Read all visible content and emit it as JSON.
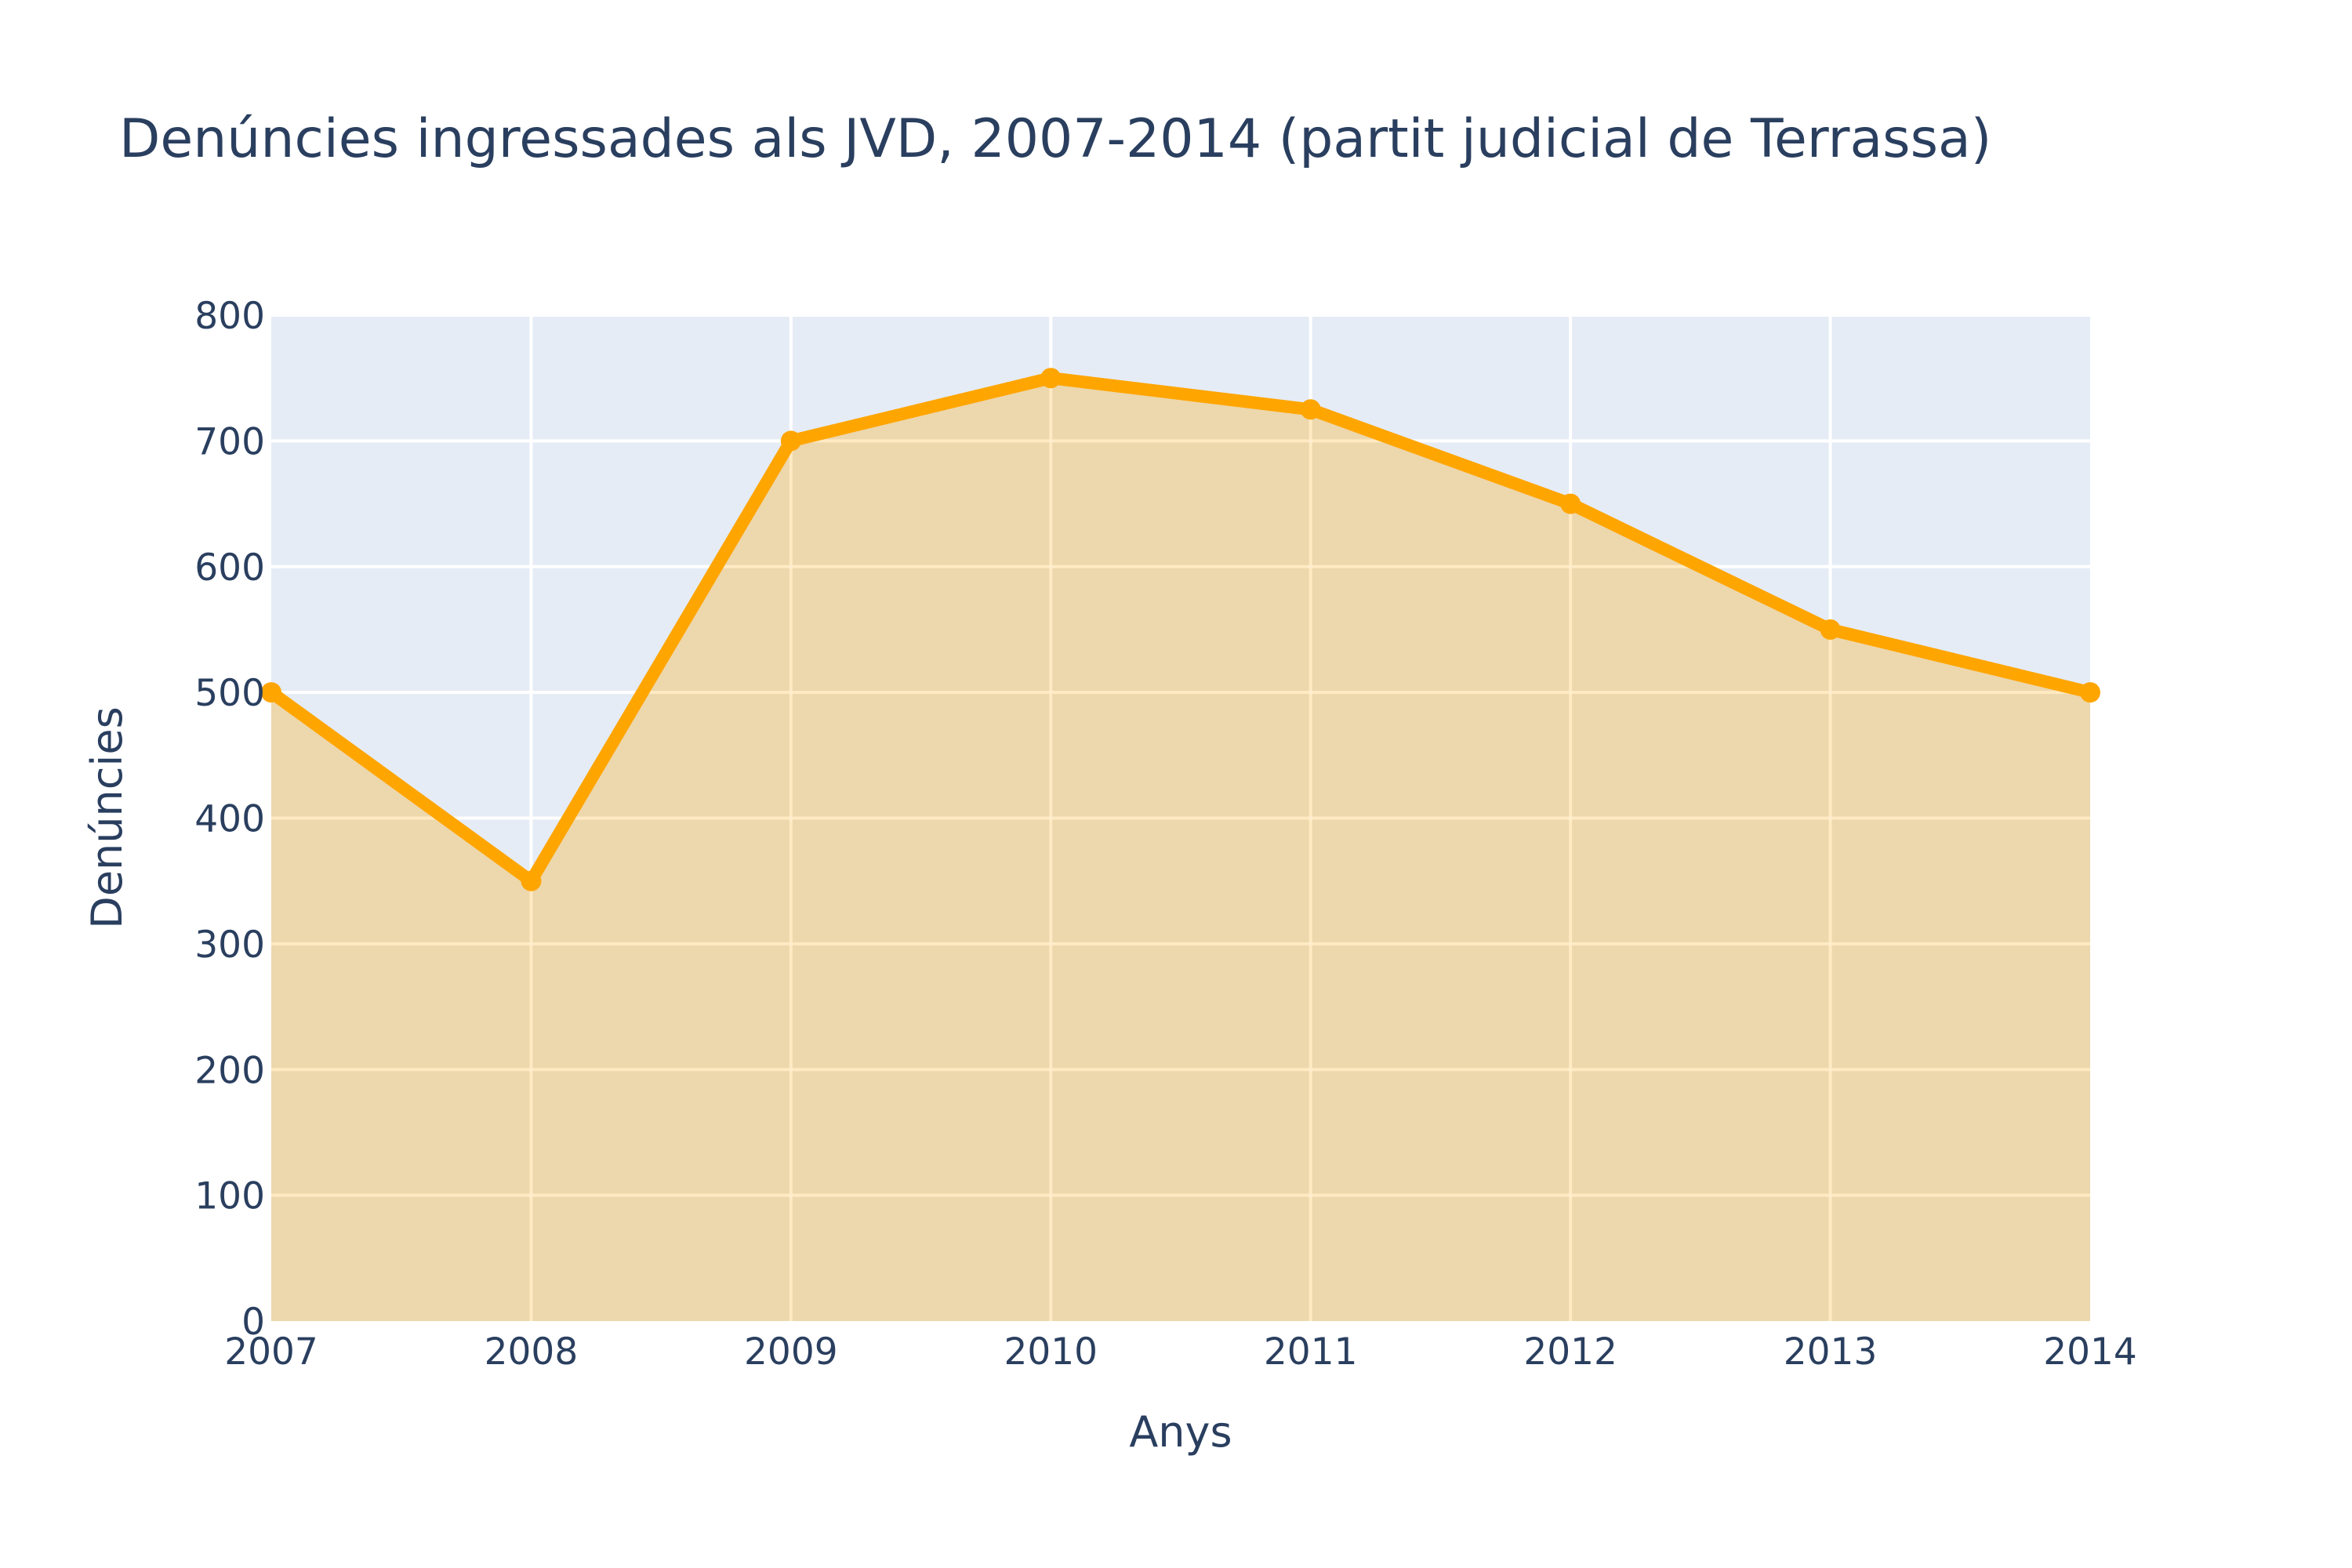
{
  "chart_data": {
    "type": "area",
    "title": "Denúncies ingressades als JVD, 2007-2014 (partit judicial de Terrassa)",
    "xlabel": "Anys",
    "ylabel": "Denúncies",
    "x": [
      2007,
      2008,
      2009,
      2010,
      2011,
      2012,
      2013,
      2014
    ],
    "series": [
      {
        "values": [
          500,
          350,
          700,
          750,
          725,
          650,
          550,
          500
        ]
      }
    ],
    "xlim": [
      2007,
      2014
    ],
    "ylim": [
      0,
      800
    ],
    "x_ticks": [
      "2007",
      "2008",
      "2009",
      "2010",
      "2011",
      "2012",
      "2013",
      "2014"
    ],
    "y_ticks": [
      "0",
      "100",
      "200",
      "300",
      "400",
      "500",
      "600",
      "700",
      "800"
    ],
    "grid": true,
    "legend": "none",
    "colors": {
      "line": "#ffa500",
      "fill": "#ffa500",
      "plot_background": "#e5ecf6",
      "grid": "#ffffff",
      "text": "#2a3f5f"
    }
  }
}
